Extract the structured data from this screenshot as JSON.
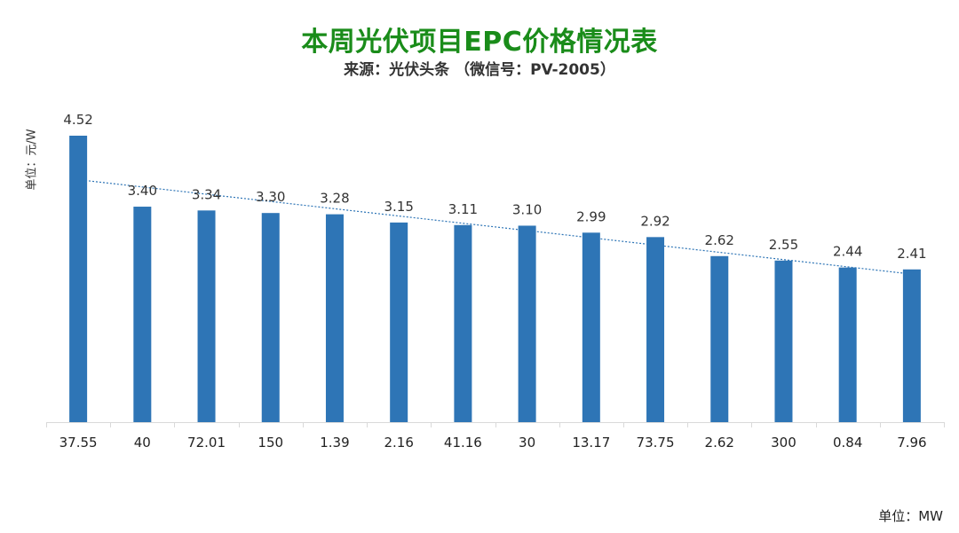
{
  "chart_data": {
    "type": "bar",
    "title": "本周光伏项目EPC价格情况表",
    "subtitle": "来源：光伏头条 （微信号：PV-2005）",
    "ylabel": "单位：元/W",
    "xlabel": "单位：MW",
    "categories": [
      "37.55",
      "40",
      "72.01",
      "150",
      "1.39",
      "2.16",
      "41.16",
      "30",
      "13.17",
      "73.75",
      "2.62",
      "300",
      "0.84",
      "7.96"
    ],
    "values": [
      4.52,
      3.4,
      3.34,
      3.3,
      3.28,
      3.15,
      3.11,
      3.1,
      2.99,
      2.92,
      2.62,
      2.55,
      2.44,
      2.41
    ],
    "value_labels": [
      "4.52",
      "3.40",
      "3.34",
      "3.30",
      "3.28",
      "3.15",
      "3.11",
      "3.10",
      "2.99",
      "2.92",
      "2.62",
      "2.55",
      "2.44",
      "2.41"
    ],
    "ylim": [
      0,
      4.52
    ],
    "trendline": "linear",
    "grid": false,
    "colors": {
      "title": "#1a8c1a",
      "bar": "#2e75b6",
      "trendline": "#2e75b6",
      "axis": "#d9d9d9"
    }
  }
}
